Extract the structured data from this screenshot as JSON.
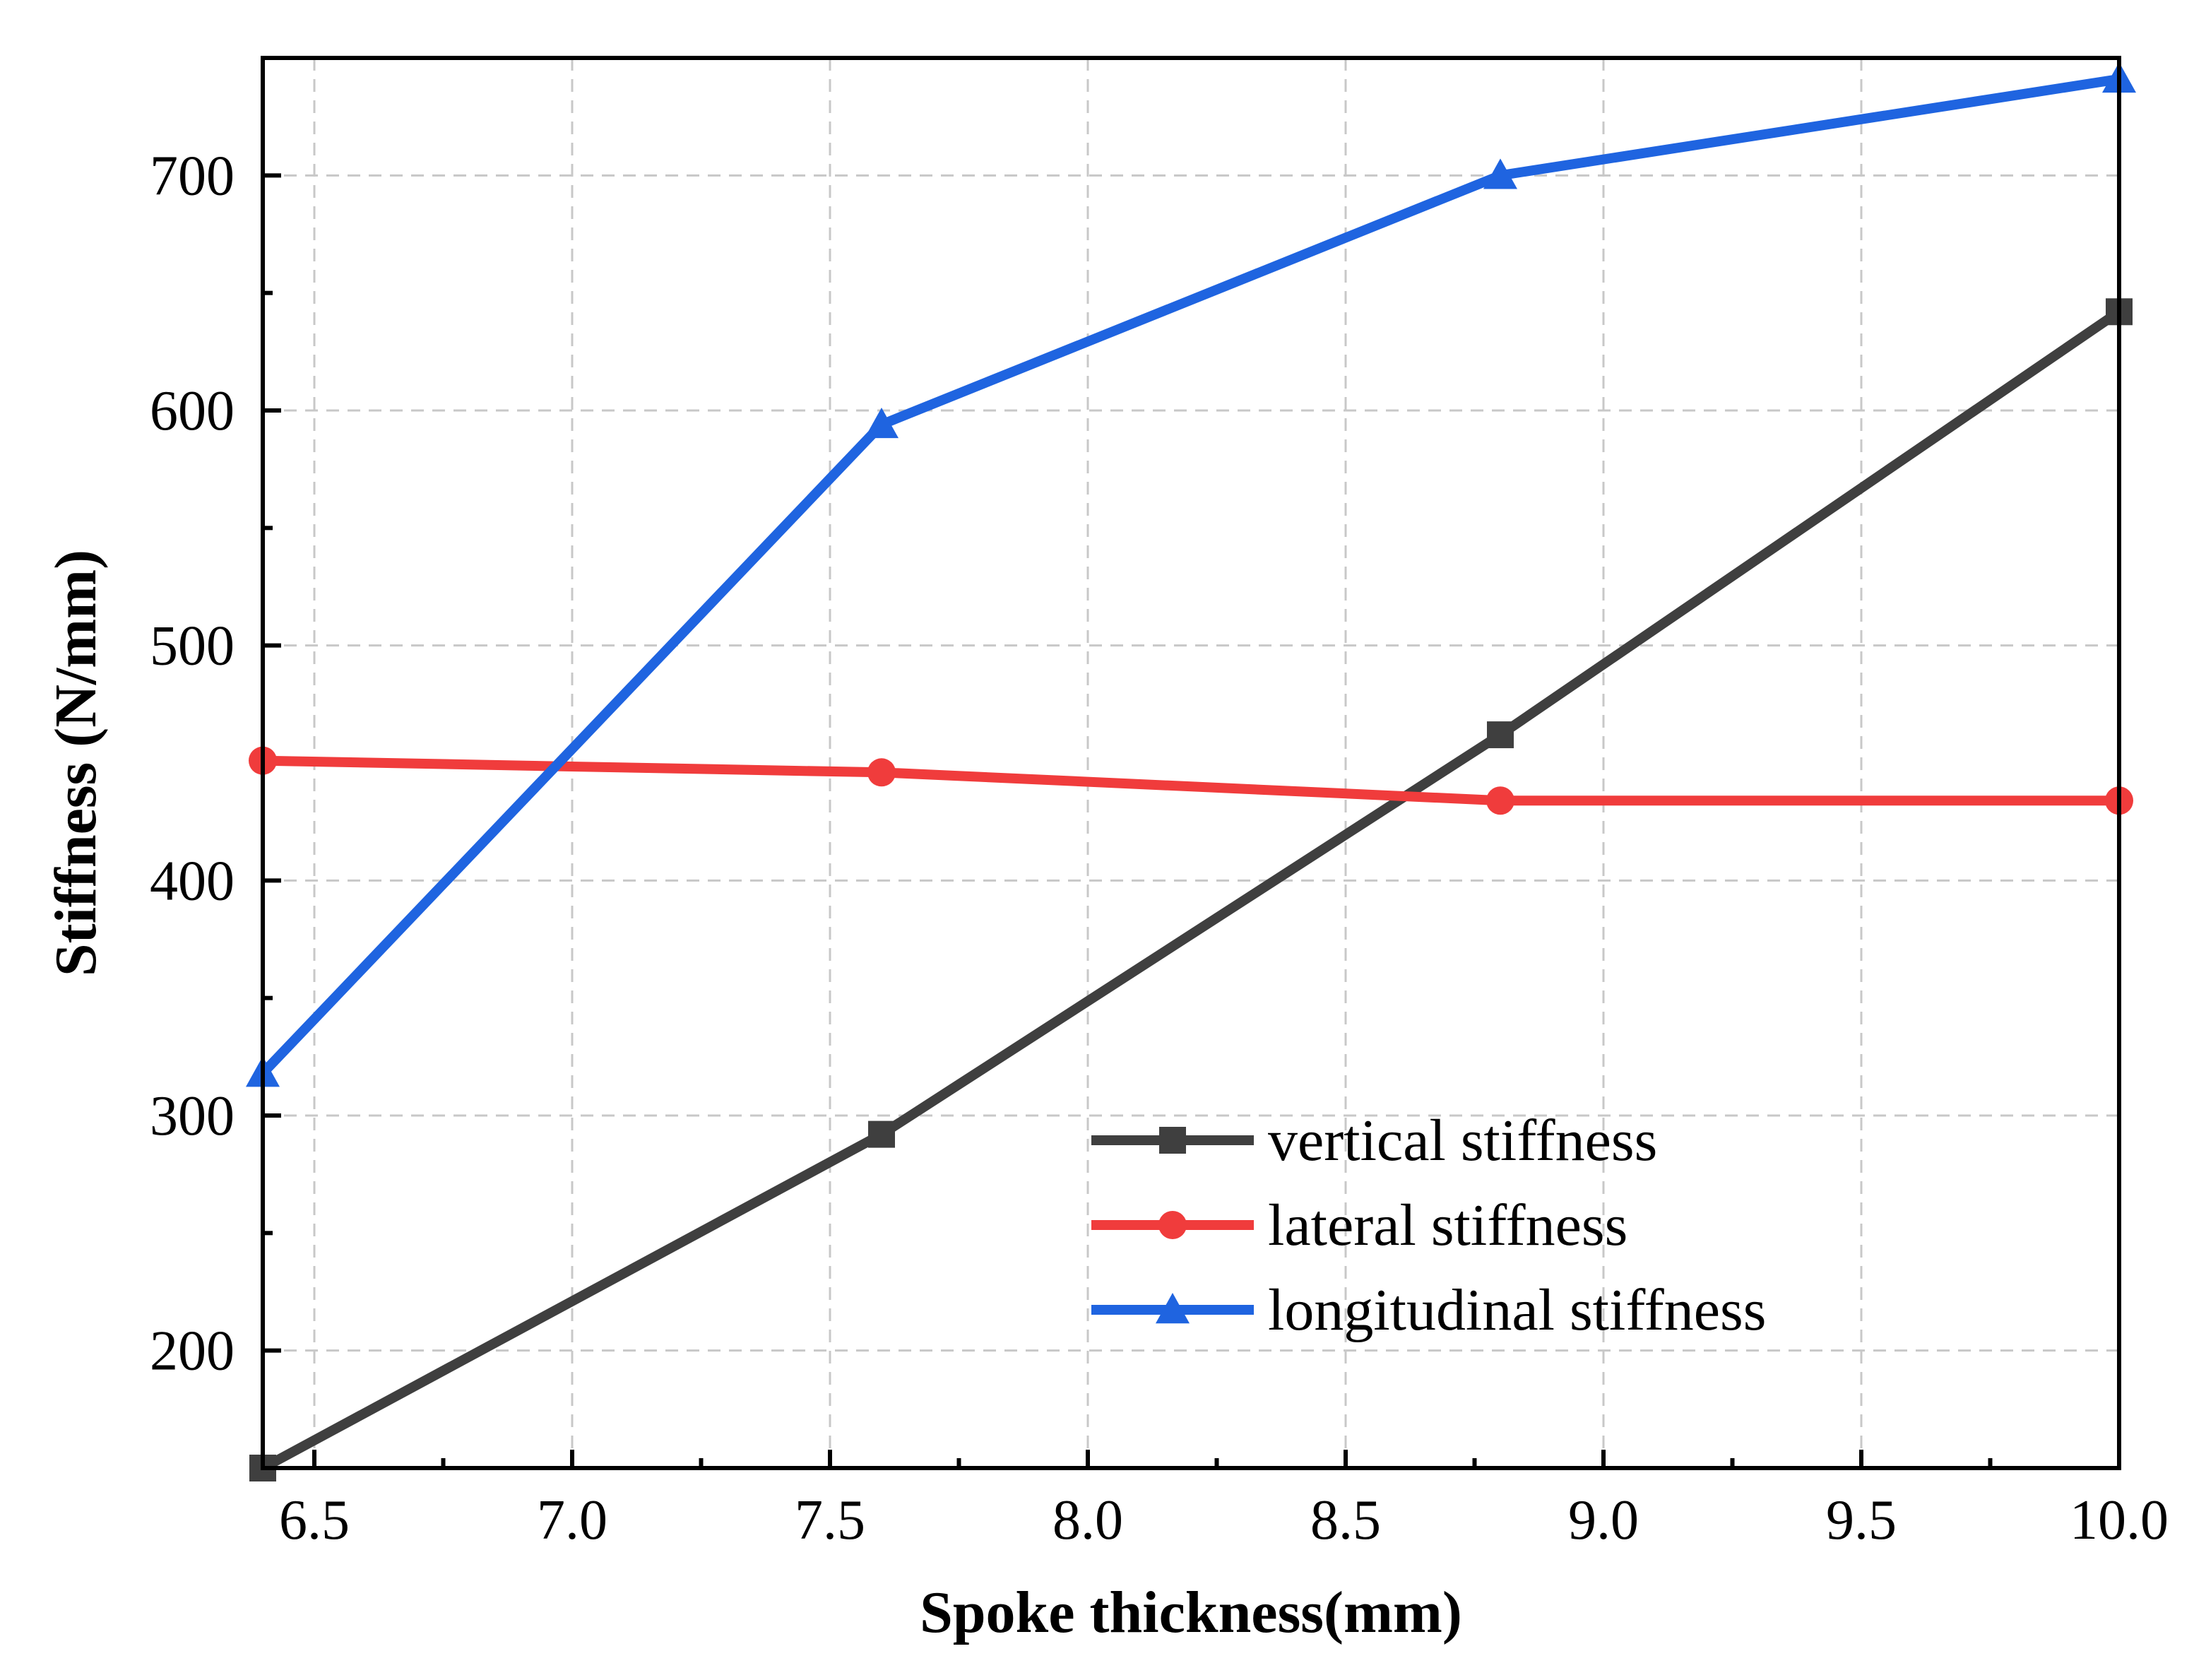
{
  "chart_data": {
    "type": "line",
    "title": "",
    "xlabel": "Spoke thickness(mm)",
    "ylabel": "Stiffness (N/mm)",
    "xlim": [
      6.4,
      10.0
    ],
    "ylim": [
      150,
      750
    ],
    "x_ticks": [
      6.5,
      7.0,
      7.5,
      8.0,
      8.5,
      9.0,
      9.5,
      10.0
    ],
    "x_tick_labels": [
      "6.5",
      "7.0",
      "7.5",
      "8.0",
      "8.5",
      "9.0",
      "9.5",
      "10.0"
    ],
    "y_ticks": [
      200,
      300,
      400,
      500,
      600,
      700
    ],
    "y_tick_labels": [
      "200",
      "300",
      "400",
      "500",
      "600",
      "700"
    ],
    "grid": true,
    "legend_position": "bottom-right",
    "x": [
      6.4,
      7.6,
      8.8,
      10.0
    ],
    "series": [
      {
        "name": "vertical stiffness",
        "color": "#3f3f3f",
        "marker": "square",
        "values": [
          150,
          292,
          462,
          642
        ]
      },
      {
        "name": "lateral stiffness",
        "color": "#f03c3c",
        "marker": "circle",
        "values": [
          451,
          446,
          434,
          434
        ]
      },
      {
        "name": "longitudinal stiffness",
        "color": "#1f64e0",
        "marker": "triangle",
        "values": [
          318,
          594,
          700,
          741
        ]
      }
    ]
  }
}
